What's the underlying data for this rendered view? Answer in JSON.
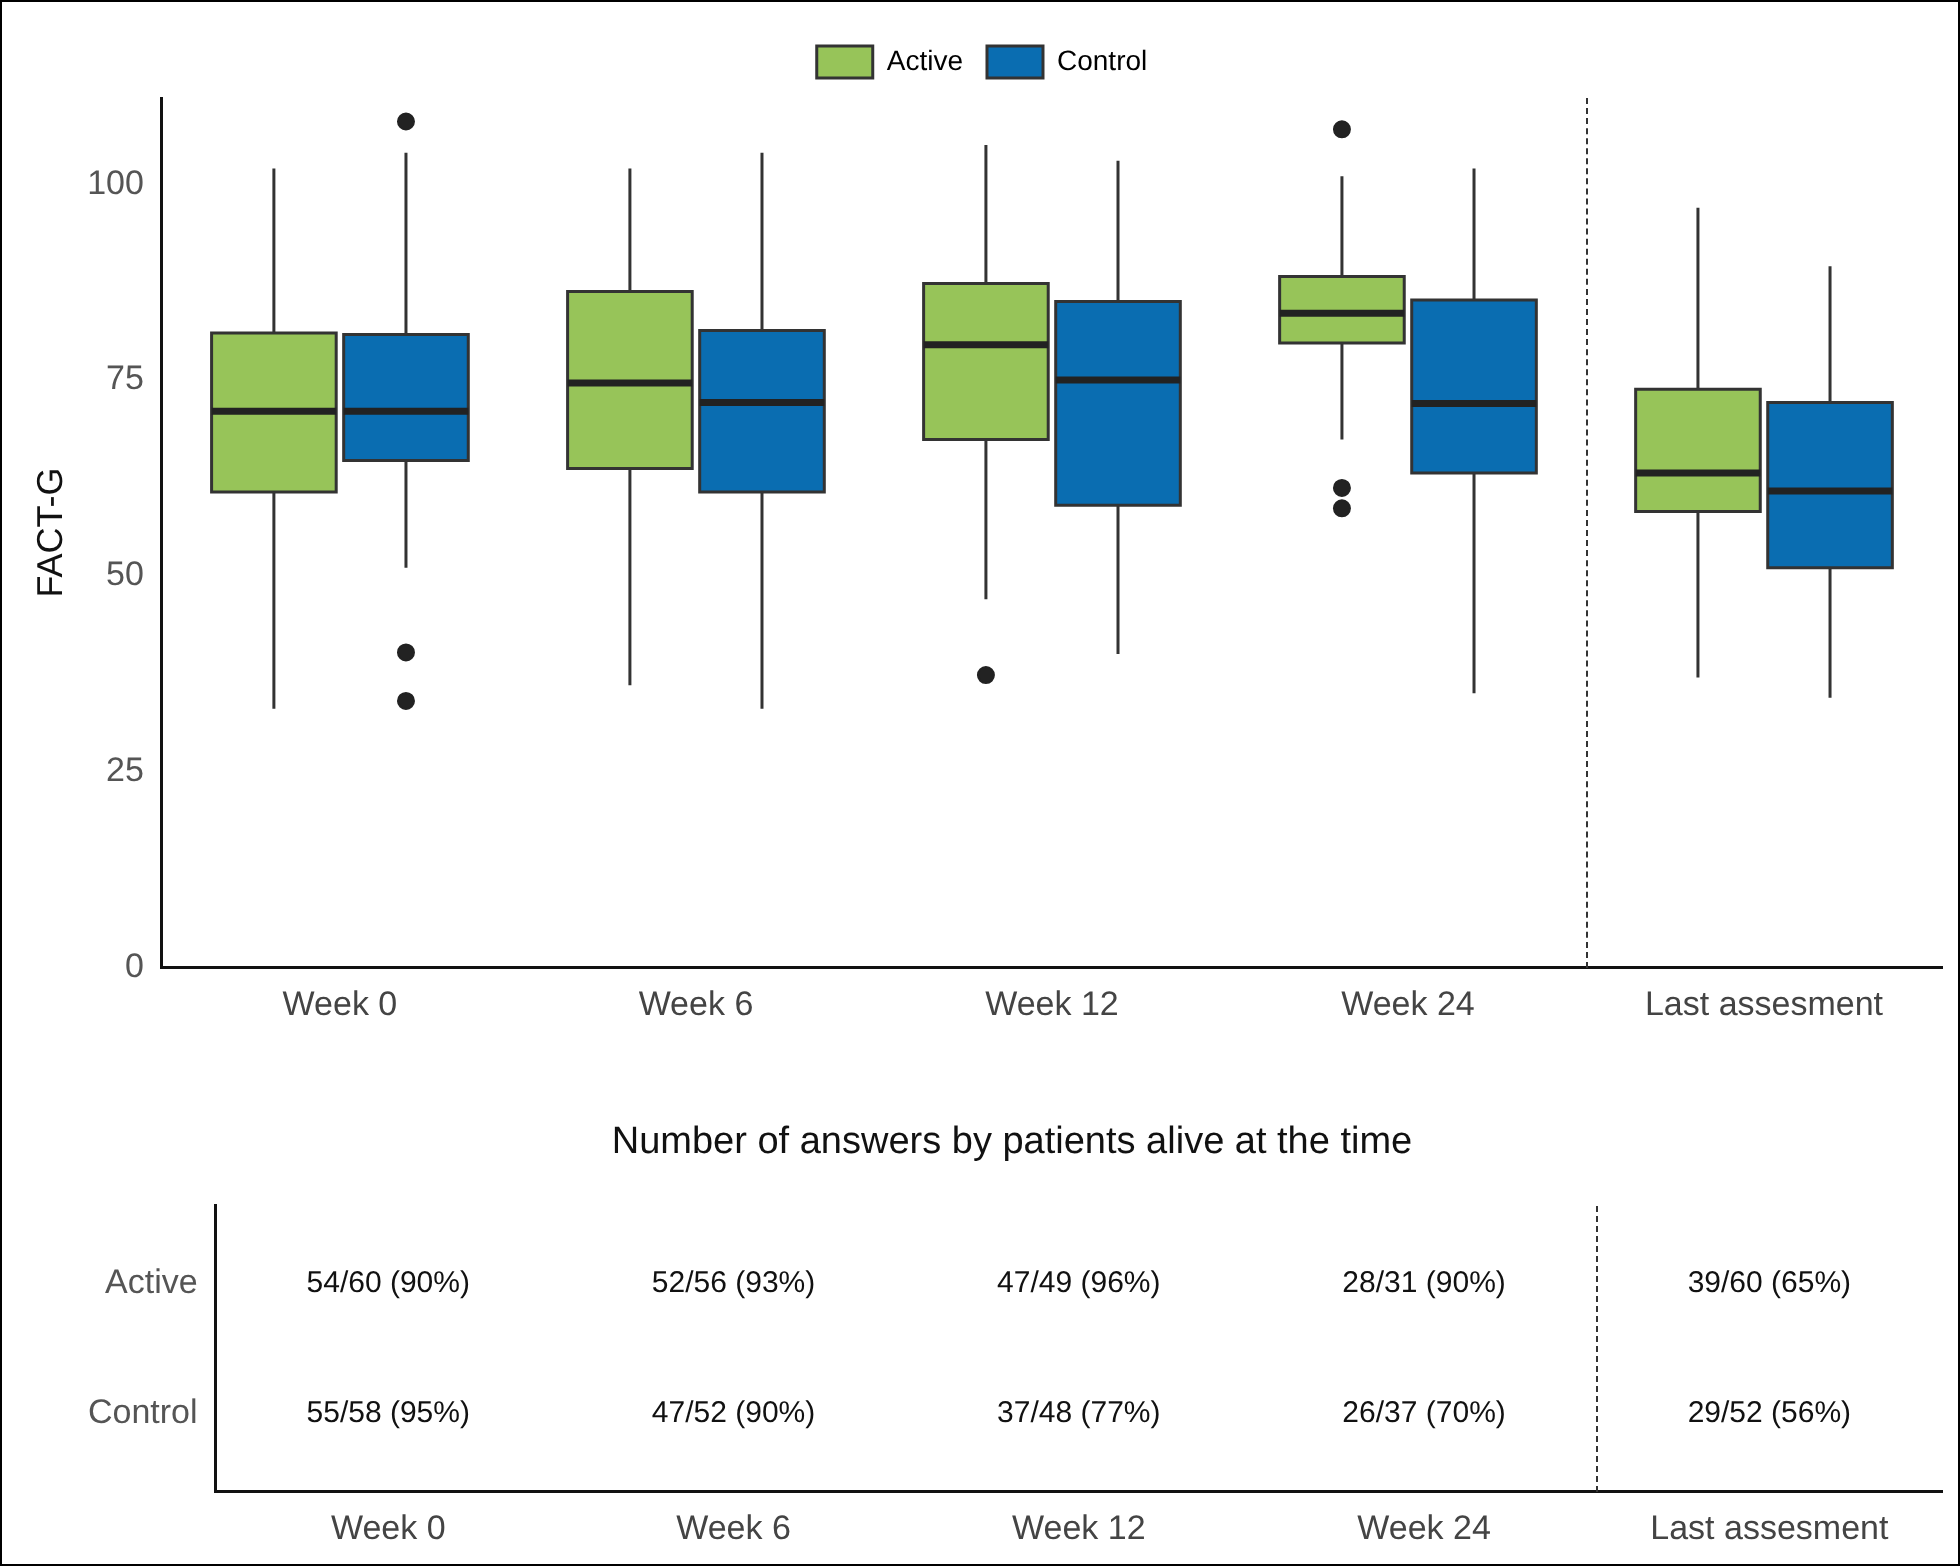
{
  "chart_data": [
    {
      "type": "box",
      "ylabel": "FACT-G",
      "categories": [
        "Week 0",
        "Week 6",
        "Week 12",
        "Week 24",
        "Last assesment"
      ],
      "ylim": [
        0,
        111
      ],
      "yticks": [
        0,
        25,
        50,
        75,
        100
      ],
      "grid": false,
      "legend": "top",
      "series": [
        {
          "name": "Active",
          "color": "#97c459",
          "boxes": [
            {
              "low": 33,
              "q1": 60.7,
              "median": 71,
              "q3": 81,
              "high": 102
            },
            {
              "low": 36,
              "q1": 63.7,
              "median": 74.6,
              "q3": 86.3,
              "high": 102
            },
            {
              "low": 47,
              "q1": 67.4,
              "median": 79.5,
              "q3": 87.3,
              "high": 105,
              "outliers": [
                37.3
              ]
            },
            {
              "low": 67.4,
              "q1": 79.7,
              "median": 83.5,
              "q3": 88.2,
              "high": 101,
              "outliers": [
                107,
                61.2,
                58.6
              ]
            },
            {
              "low": 37,
              "q1": 58.2,
              "median": 63.1,
              "q3": 73.8,
              "high": 97
            }
          ]
        },
        {
          "name": "Control",
          "color": "#0a6db1",
          "boxes": [
            {
              "low": 51,
              "q1": 64.7,
              "median": 71,
              "q3": 80.8,
              "high": 104,
              "outliers": [
                108,
                40.2,
                34
              ]
            },
            {
              "low": 33,
              "q1": 60.7,
              "median": 72.1,
              "q3": 81.3,
              "high": 104
            },
            {
              "low": 40,
              "q1": 59,
              "median": 75,
              "q3": 85,
              "high": 103
            },
            {
              "low": 35,
              "q1": 63.1,
              "median": 72,
              "q3": 85.2,
              "high": 102
            },
            {
              "low": 34.4,
              "q1": 51,
              "median": 60.8,
              "q3": 72.1,
              "high": 89.5
            }
          ]
        }
      ]
    },
    {
      "type": "other",
      "title": "Number of answers by patients alive at the time",
      "categories": [
        "Week 0",
        "Week 6",
        "Week 12",
        "Week 24",
        "Last assesment"
      ],
      "y_categories": [
        "Active",
        "Control"
      ],
      "cell_labels": [
        [
          "54/60 (90%)",
          "52/56 (93%)",
          "47/49 (96%)",
          "28/31 (90%)",
          "39/60 (65%)"
        ],
        [
          "55/58 (95%)",
          "47/52 (90%)",
          "37/48 (77%)",
          "26/37 (70%)",
          "29/52 (56%)"
        ]
      ]
    }
  ]
}
